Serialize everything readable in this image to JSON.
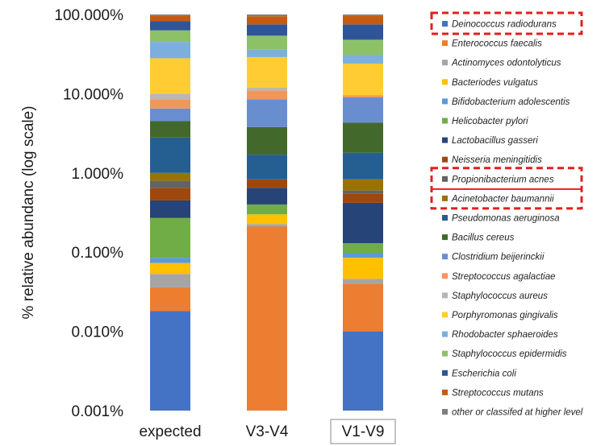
{
  "chart_data": {
    "type": "bar",
    "stacked": true,
    "ylabel": "% relative abundanc (log scale)",
    "log_scale": true,
    "ylim": [
      0.001,
      100
    ],
    "yticks": [
      0.001,
      0.01,
      0.1,
      1,
      10,
      100
    ],
    "ytick_labels": [
      "0.001%",
      "0.010%",
      "0.100%",
      "1.000%",
      "10.000%",
      "100.000%"
    ],
    "categories": [
      "expected",
      "V3-V4",
      "V1-V9"
    ],
    "boxed_category": "V1-V9",
    "highlighted_series": [
      "Deinococcus radiodurans",
      "Propionibacterium acnes",
      "Acinetobacter baumannii"
    ],
    "legend_position": "right",
    "series": [
      {
        "name": "Deinococcus radiodurans",
        "color": "#4472C4",
        "top": [
          0.018,
          0.001,
          0.01
        ]
      },
      {
        "name": "Enterococcus faecalis",
        "color": "#ED7D31",
        "top": [
          0.036,
          0.21,
          0.04
        ]
      },
      {
        "name": "Actinomyces odontolyticus",
        "color": "#A5A5A5",
        "top": [
          0.053,
          0.226,
          0.046
        ]
      },
      {
        "name": "Bacteriodes vulgatus",
        "color": "#FFC000",
        "top": [
          0.073,
          0.3,
          0.085
        ]
      },
      {
        "name": "Bifidobacterium adolescentis",
        "color": "#5B9BD5",
        "top": [
          0.085,
          0.3,
          0.097
        ]
      },
      {
        "name": "Helicobacter  pylori",
        "color": "#70AD47",
        "top": [
          0.27,
          0.4,
          0.13
        ]
      },
      {
        "name": "Lactobacillus gasseri",
        "color": "#264478",
        "top": [
          0.45,
          0.65,
          0.42
        ]
      },
      {
        "name": "Neisseria meningitidis",
        "color": "#9E480E",
        "top": [
          0.65,
          0.83,
          0.55
        ]
      },
      {
        "name": "Propionibacterium acnes",
        "color": "#636363",
        "top": [
          0.8,
          0.83,
          0.6
        ]
      },
      {
        "name": "Acinetobacter baumannii",
        "color": "#997300",
        "top": [
          1.0,
          0.83,
          0.83
        ]
      },
      {
        "name": "Pseudomonas aeruginosa",
        "color": "#255E91",
        "top": [
          2.8,
          1.7,
          1.8
        ]
      },
      {
        "name": "Bacillus cereus",
        "color": "#43682B",
        "top": [
          4.5,
          3.8,
          4.3
        ]
      },
      {
        "name": "Clostridium beijerinckii",
        "color": "#698ED0",
        "top": [
          6.5,
          8.5,
          9.0
        ]
      },
      {
        "name": "Streptococcus agalactiae",
        "color": "#F1975A",
        "top": [
          8.5,
          11.0,
          9.6
        ]
      },
      {
        "name": "Staphylococcus aureus",
        "color": "#B7B7B7",
        "top": [
          10.0,
          12.0,
          9.6
        ]
      },
      {
        "name": "Porphyromonas gingivalis",
        "color": "#FFCD33",
        "top": [
          28.0,
          29.0,
          24.0
        ]
      },
      {
        "name": "Rhodobacter sphaeroides",
        "color": "#7CAFDD",
        "top": [
          45.0,
          36.0,
          31.0
        ]
      },
      {
        "name": "Staphylococcus epidermidis",
        "color": "#8CC168",
        "top": [
          63.0,
          54.0,
          48.0
        ]
      },
      {
        "name": "Escherichia coli",
        "color": "#2F5597",
        "top": [
          82.0,
          75.0,
          75.0
        ]
      },
      {
        "name": "Streptococcus mutans",
        "color": "#C55A11",
        "top": [
          97.0,
          95.0,
          97.0
        ]
      },
      {
        "name": "other or classifed at higher level",
        "color": "#7F7F7F",
        "top": [
          100.0,
          100.0,
          100.0
        ]
      }
    ]
  }
}
